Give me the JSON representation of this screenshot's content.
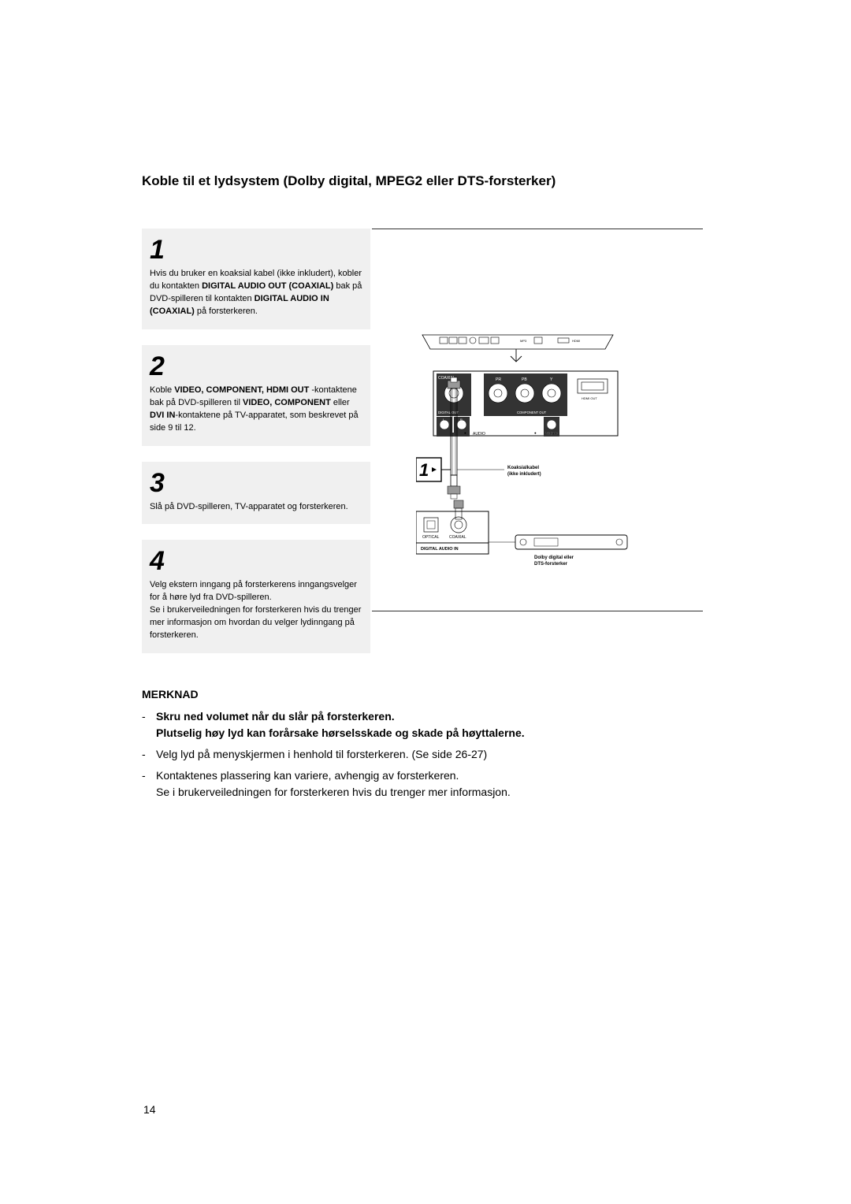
{
  "title": "Koble til et lydsystem (Dolby digital, MPEG2 eller DTS-forsterker)",
  "steps": [
    {
      "num": "1",
      "html": "Hvis du bruker en koaksial kabel (ikke inkludert), kobler du kontakten <b>DIGITAL AUDIO OUT (COAXIAL)</b> bak på DVD-spilleren til kontakten <b>DIGITAL AUDIO IN (COAXIAL)</b> på forsterkeren."
    },
    {
      "num": "2",
      "html": "Koble <b>VIDEO, COMPONENT, HDMI OUT</b> -kontaktene bak på DVD-spilleren til <b>VIDEO, COMPONENT</b> eller <b>DVI IN</b>-kontaktene på TV-apparatet, som beskrevet på side 9 til 12."
    },
    {
      "num": "3",
      "html": "Slå på DVD-spilleren, TV-apparatet og forsterkeren."
    },
    {
      "num": "4",
      "html": "Velg ekstern inngang på forsterkerens inngangsvelger for å høre lyd fra DVD-spilleren.<br>Se i brukerveiledningen for forsterkeren hvis du trenger mer informasjon om hvordan du velger lydinngang på forsterkeren."
    }
  ],
  "diagram": {
    "step_ref": "1",
    "coaxial_top": "COAXIAL",
    "digital_out": "DIGITAL OUT",
    "component_out": "COMPONENT OUT",
    "audio": "AUDIO",
    "video": "VIDEO",
    "l": "L",
    "r": "R",
    "pr": "PR",
    "pb": "PB",
    "y": "Y",
    "hdmi": "HDMI OUT",
    "cable_label_1": "Koaksialkabel",
    "cable_label_2": "(ikke inkludert)",
    "optical": "OPTICAL",
    "coaxial_btm": "COAXIAL",
    "digital_audio_in": "DIGITAL AUDIO IN",
    "amp_label_1": "Dolby digital eller",
    "amp_label_2": "DTS-forsterker"
  },
  "notes": {
    "heading": "MERKNAD",
    "items": [
      {
        "bold": true,
        "text": "Skru ned volumet når du slår på forsterkeren.\nPlutselig høy lyd kan forårsake hørselsskade og skade på høyttalerne."
      },
      {
        "bold": false,
        "text": "Velg lyd på menyskjermen i henhold til forsterkeren. (Se side 26-27)"
      },
      {
        "bold": false,
        "text": "Kontaktenes plassering kan variere, avhengig av forsterkeren.\nSe i brukerveiledningen for forsterkeren hvis du trenger mer informasjon."
      }
    ]
  },
  "page_number": "14"
}
